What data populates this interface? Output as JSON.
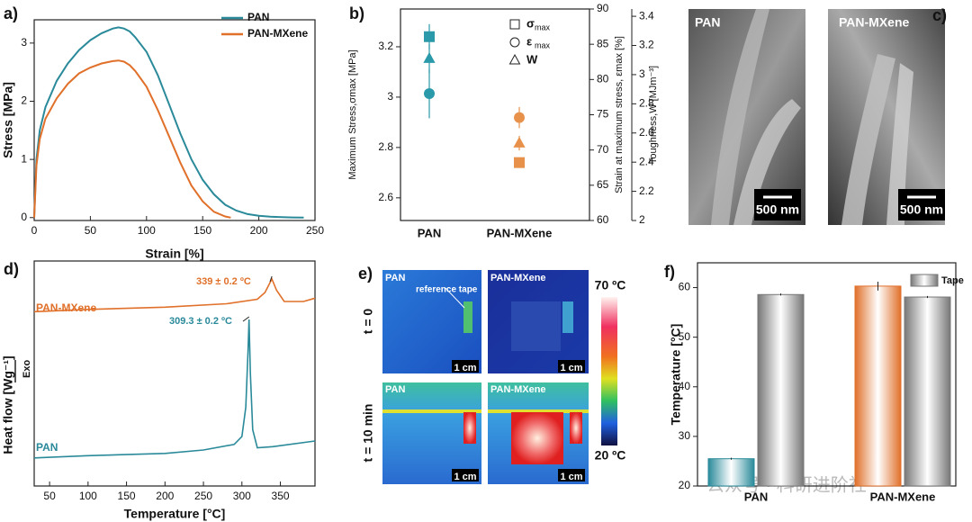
{
  "chart_data": [
    {
      "type": "line",
      "label": "a)",
      "x_label": "Strain [%]",
      "y_label": "Stress [MPa]",
      "xlim": [
        0,
        250
      ],
      "ylim": [
        -0.05,
        3.4
      ],
      "xticks": [
        0,
        50,
        100,
        150,
        200,
        250
      ],
      "yticks": [
        0,
        1,
        2,
        3
      ],
      "legend": "upper right",
      "series": [
        {
          "name": "PAN",
          "color": "#2a8a9a",
          "x": [
            0,
            2,
            5,
            10,
            20,
            30,
            40,
            50,
            60,
            70,
            75,
            80,
            85,
            90,
            100,
            110,
            120,
            130,
            140,
            150,
            160,
            170,
            180,
            190,
            200,
            210,
            220,
            230,
            240
          ],
          "values": [
            0,
            1.0,
            1.5,
            1.9,
            2.35,
            2.65,
            2.88,
            3.05,
            3.17,
            3.25,
            3.27,
            3.25,
            3.2,
            3.1,
            2.85,
            2.45,
            1.95,
            1.45,
            1.0,
            0.65,
            0.4,
            0.22,
            0.12,
            0.06,
            0.03,
            0.015,
            0.008,
            0.003,
            0
          ]
        },
        {
          "name": "PAN-MXene",
          "color": "#e0702a",
          "x": [
            0,
            2,
            5,
            10,
            20,
            30,
            40,
            50,
            60,
            70,
            75,
            80,
            85,
            90,
            100,
            110,
            120,
            130,
            140,
            150,
            160,
            170,
            175
          ],
          "values": [
            0,
            0.9,
            1.35,
            1.7,
            2.05,
            2.3,
            2.48,
            2.58,
            2.65,
            2.69,
            2.7,
            2.68,
            2.62,
            2.52,
            2.25,
            1.85,
            1.4,
            0.95,
            0.55,
            0.28,
            0.1,
            0.02,
            0
          ]
        }
      ]
    },
    {
      "type": "scatter",
      "label": "b)",
      "categories": [
        "PAN",
        "PAN-MXene"
      ],
      "colors": [
        "#2a9aaa",
        "#e8914a"
      ],
      "y_label": "Maximum Stress,σmax [MPa]",
      "y2_label": "Strain at maximum stress, εmax [%]",
      "y3_label": "Toughness,W [MJm⁻³]",
      "ylim": [
        2.51,
        3.35
      ],
      "yticks": [
        2.6,
        2.8,
        3.0,
        3.2
      ],
      "y2lim": [
        60,
        90
      ],
      "y2ticks": [
        60,
        65,
        70,
        75,
        80,
        85,
        90
      ],
      "y3lim": [
        2.0,
        3.45
      ],
      "y3ticks": [
        2.0,
        2.2,
        2.4,
        2.6,
        2.8,
        3.0,
        3.2,
        3.4
      ],
      "series": [
        {
          "name": "σ",
          "subscript": "max",
          "marker": "square",
          "axis": "y",
          "values": [
            3.24,
            2.74
          ],
          "errors": [
            0.05,
            0.01
          ]
        },
        {
          "name": "ε",
          "subscript": "max",
          "marker": "circle",
          "axis": "y2",
          "values": [
            78,
            74.6
          ],
          "errors": [
            3.5,
            1.5
          ]
        },
        {
          "name": "W",
          "marker": "triangle",
          "axis": "y3",
          "values": [
            3.11,
            2.53
          ],
          "errors": [
            0.1,
            0.05
          ]
        }
      ]
    },
    {
      "type": "line",
      "label": "d)",
      "x_label": "Temperature [°C]",
      "y_label": "Heat flow [Wg⁻¹]",
      "exo": "Exo",
      "xlim": [
        30,
        395
      ],
      "ylim": [
        0,
        10
      ],
      "xticks": [
        50,
        100,
        150,
        200,
        250,
        300,
        350
      ],
      "series": [
        {
          "name": "PAN",
          "color": "#2a8a9a",
          "annotation": "309.3 ± 0.2 ºC",
          "x": [
            30,
            100,
            200,
            250,
            290,
            300,
            305,
            308,
            309.3,
            311,
            314,
            320,
            340,
            395
          ],
          "values": [
            1.25,
            1.35,
            1.45,
            1.6,
            1.85,
            2.2,
            3.5,
            6,
            7.4,
            5,
            2.5,
            1.7,
            1.75,
            2.0
          ]
        },
        {
          "name": "PAN-MXene",
          "color": "#e0702a",
          "annotation": "339 ± 0.2 ºC",
          "x": [
            30,
            100,
            200,
            280,
            320,
            330,
            339,
            345,
            355,
            380,
            395
          ],
          "values": [
            7.75,
            7.85,
            7.95,
            8.1,
            8.3,
            8.6,
            9.2,
            8.7,
            8.2,
            8.2,
            8.35
          ]
        }
      ]
    },
    {
      "type": "bar",
      "label": "f)",
      "y_label": "Temperature [°C]",
      "categories": [
        "PAN",
        "PAN-MXene"
      ],
      "ylim": [
        20,
        65
      ],
      "yticks": [
        20,
        30,
        40,
        50,
        60
      ],
      "legend": "upper right",
      "series": [
        {
          "colors": [
            "#2a8a9a",
            "#e0702a"
          ],
          "values": [
            25.5,
            60.3
          ],
          "errors": [
            0.2,
            0.9
          ]
        },
        {
          "name": "Tape",
          "color": "#777777",
          "values": [
            58.6,
            58.1
          ],
          "errors": [
            0.2,
            0.2
          ]
        }
      ]
    }
  ],
  "sem": {
    "label": "c)",
    "images": [
      "PAN",
      "PAN-MXene"
    ],
    "scale": "500 nm"
  },
  "thermal": {
    "label": "e)",
    "rows": [
      "t = 0",
      "t = 10 min"
    ],
    "images": [
      "PAN",
      "PAN-MXene"
    ],
    "scale": "1 cm",
    "note": "reference tape",
    "colorbar_max": "70 ºC",
    "colorbar_min": "20 ºC"
  },
  "watermark": "公众号 · 科研进阶社"
}
